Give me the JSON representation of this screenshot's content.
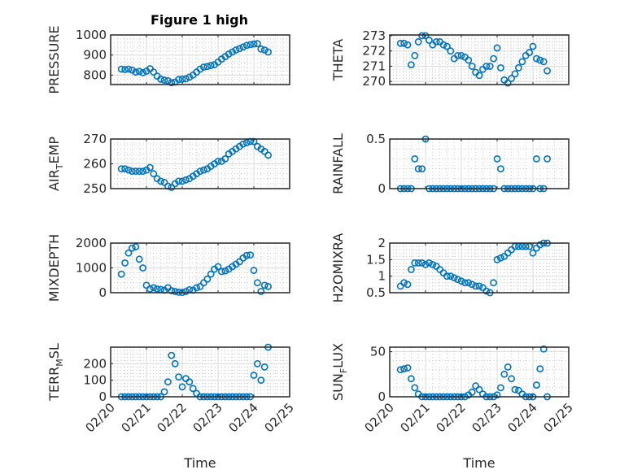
{
  "chart_data": {
    "type": "scatter",
    "title": "Figure 1 high",
    "xlabel": "Time",
    "x_tick_labels": [
      "02/20",
      "02/21",
      "02/22",
      "02/23",
      "02/24",
      "02/25"
    ],
    "x_unit": "days since 02/20",
    "xlim": [
      0,
      5
    ],
    "x": [
      0.3,
      0.4,
      0.5,
      0.6,
      0.7,
      0.8,
      0.9,
      1.0,
      1.1,
      1.2,
      1.3,
      1.4,
      1.5,
      1.6,
      1.7,
      1.8,
      1.9,
      2.0,
      2.1,
      2.2,
      2.3,
      2.4,
      2.5,
      2.6,
      2.7,
      2.8,
      2.9,
      3.0,
      3.1,
      3.2,
      3.3,
      3.4,
      3.5,
      3.6,
      3.7,
      3.8,
      3.9,
      4.0,
      4.1,
      4.2,
      4.3,
      4.4
    ],
    "marker": "circle-open",
    "color": "#0072BD",
    "grid": "on (major + minor)",
    "subplots": [
      {
        "ylabel": "PRESSURE",
        "ylim": [
          753,
          1000
        ],
        "yticks": [
          800,
          900,
          1000
        ],
        "values": [
          830,
          828,
          830,
          825,
          815,
          818,
          812,
          820,
          832,
          815,
          795,
          780,
          775,
          772,
          762,
          765,
          778,
          780,
          782,
          790,
          800,
          815,
          830,
          840,
          843,
          848,
          852,
          865,
          880,
          892,
          905,
          915,
          925,
          932,
          940,
          948,
          952,
          955,
          957,
          930,
          925,
          915
        ]
      },
      {
        "ylabel": "THETA",
        "ylim": [
          269.8,
          273.05
        ],
        "yticks": [
          270,
          271,
          272,
          273
        ],
        "values": [
          272.5,
          272.5,
          272.4,
          271.1,
          271.7,
          272.6,
          273,
          273,
          272.7,
          272.4,
          272.6,
          272.6,
          272.4,
          272.3,
          272.0,
          271.5,
          271.7,
          271.7,
          271.6,
          271.4,
          271.0,
          270.6,
          270.4,
          270.8,
          271.0,
          271.0,
          271.5,
          272.2,
          270.9,
          270.1,
          269.9,
          270.2,
          270.5,
          270.9,
          271.3,
          271.7,
          271.9,
          272.3,
          271.5,
          271.4,
          271.3,
          270.7
        ]
      },
      {
        "ylabel": "AIR_TEMP",
        "ylim": [
          250,
          270
        ],
        "yticks": [
          250,
          260,
          270
        ],
        "values": [
          258,
          258,
          257.5,
          257,
          257,
          257,
          257,
          257.5,
          258.5,
          256,
          254,
          253,
          252.5,
          251,
          250.5,
          252,
          253,
          253,
          253.5,
          254,
          255,
          256,
          257,
          257.5,
          258,
          259,
          260,
          261,
          261,
          262,
          264,
          265,
          266,
          267,
          268,
          268.5,
          269,
          269,
          267,
          266,
          265,
          263.5
        ]
      },
      {
        "ylabel": "RAINFALL",
        "ylim": [
          0,
          0.5
        ],
        "yticks": [
          0,
          0.5
        ],
        "values": [
          0,
          0,
          0,
          0,
          0.3,
          0.2,
          0.2,
          0.5,
          0,
          0,
          0,
          0,
          0,
          0,
          0,
          0,
          0,
          0,
          0,
          0,
          0,
          0,
          0,
          0,
          0,
          0,
          0,
          0.3,
          0.2,
          0,
          0,
          0,
          0,
          0,
          0,
          0,
          0,
          0,
          0.3,
          0,
          0,
          0.3
        ]
      },
      {
        "ylabel": "MIXDEPTH",
        "ylim": [
          0,
          2000
        ],
        "yticks": [
          0,
          1000,
          2000
        ],
        "values": [
          750,
          1200,
          1600,
          1800,
          1850,
          1350,
          1000,
          300,
          150,
          200,
          150,
          130,
          100,
          200,
          80,
          50,
          20,
          10,
          50,
          120,
          100,
          200,
          250,
          400,
          550,
          750,
          950,
          1050,
          850,
          880,
          950,
          1050,
          1150,
          1250,
          1400,
          1500,
          1520,
          900,
          400,
          50,
          300,
          250
        ]
      },
      {
        "ylabel": "H2OMIXRA",
        "ylim": [
          0.5,
          2
        ],
        "yticks": [
          0.5,
          1,
          1.5,
          2
        ],
        "values": [
          0.7,
          0.8,
          0.75,
          1.2,
          1.4,
          1.4,
          1.4,
          1.35,
          1.4,
          1.35,
          1.3,
          1.2,
          1.1,
          1.0,
          1.0,
          0.95,
          0.9,
          0.85,
          0.8,
          0.8,
          0.75,
          0.7,
          0.7,
          0.65,
          0.55,
          0.5,
          0.8,
          1.5,
          1.55,
          1.6,
          1.7,
          1.8,
          1.9,
          1.9,
          1.9,
          1.9,
          1.9,
          1.7,
          1.85,
          1.95,
          2.0,
          2.0
        ]
      },
      {
        "ylabel": "TERR_MSL",
        "ylim": [
          0,
          300
        ],
        "yticks": [
          0,
          100,
          200
        ],
        "values": [
          0,
          0,
          0,
          0,
          0,
          0,
          0,
          0,
          0,
          0,
          0,
          0,
          30,
          90,
          250,
          200,
          120,
          60,
          110,
          90,
          50,
          20,
          0,
          0,
          0,
          0,
          0,
          0,
          0,
          0,
          0,
          0,
          0,
          0,
          0,
          0,
          0,
          130,
          200,
          100,
          180,
          300
        ]
      },
      {
        "ylabel": "SUN_FLUX",
        "ylim": [
          0,
          55
        ],
        "yticks": [
          0,
          50
        ],
        "values": [
          30,
          31,
          32,
          20,
          10,
          3,
          0,
          0,
          0,
          0,
          0,
          0,
          0,
          0,
          0,
          0,
          0,
          0,
          0,
          2,
          5,
          12,
          8,
          3,
          0,
          0,
          0,
          2,
          10,
          25,
          33,
          20,
          8,
          7,
          3,
          0,
          0,
          0,
          13,
          31,
          53,
          0
        ]
      }
    ]
  }
}
